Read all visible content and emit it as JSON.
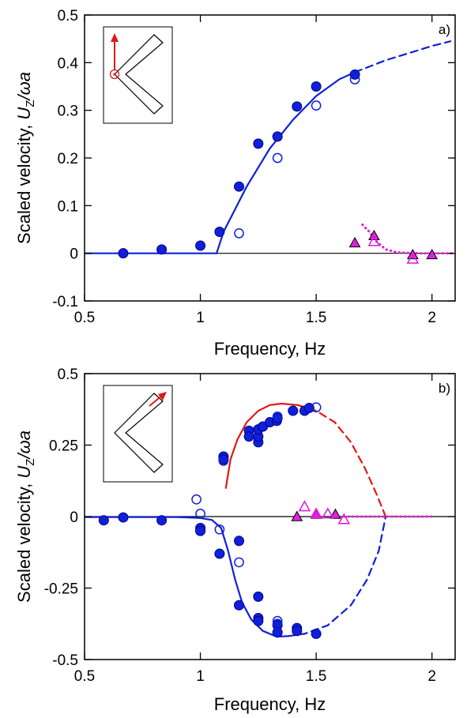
{
  "colors": {
    "blue": "#1020d8",
    "red": "#e01818",
    "magenta": "#e020e0",
    "axis": "#000000"
  },
  "chart_data": [
    {
      "type": "scatter",
      "panel_label": "a)",
      "xlabel": "Frequency, Hz",
      "ylabel_main": "Scaled velocity, ",
      "ylabel_math": "U",
      "ylabel_sub": "Z",
      "ylabel_rest": "/ωa",
      "xlim": [
        0.5,
        2.1
      ],
      "ylim": [
        -0.1,
        0.5
      ],
      "xticks": [
        0.5,
        1,
        1.5,
        2
      ],
      "xtick_labels": [
        "0.5",
        "1",
        "1.5",
        "2"
      ],
      "yticks": [
        -0.1,
        0,
        0.1,
        0.2,
        0.3,
        0.4,
        0.5
      ],
      "ytick_labels": [
        "-0.1",
        "0",
        "0.1",
        "0.2",
        "0.3",
        "0.4",
        "0.5"
      ],
      "zero_line": true,
      "series": [
        {
          "marker": "filled-circle",
          "color": "blue",
          "points": [
            [
              0.667,
              0.0
            ],
            [
              0.833,
              0.008
            ],
            [
              1.0,
              0.016
            ],
            [
              1.083,
              0.045
            ],
            [
              1.167,
              0.14
            ],
            [
              1.25,
              0.23
            ],
            [
              1.333,
              0.245
            ],
            [
              1.417,
              0.308
            ],
            [
              1.5,
              0.35
            ],
            [
              1.667,
              0.375
            ]
          ]
        },
        {
          "marker": "open-circle",
          "color": "blue",
          "points": [
            [
              1.167,
              0.042
            ],
            [
              1.333,
              0.2
            ],
            [
              1.5,
              0.31
            ],
            [
              1.667,
              0.365
            ]
          ]
        },
        {
          "marker": "filled-triangle",
          "color": "magenta",
          "points": [
            [
              1.667,
              0.022
            ],
            [
              1.75,
              0.037
            ],
            [
              1.917,
              -0.003
            ],
            [
              2.0,
              -0.003
            ]
          ]
        },
        {
          "marker": "open-triangle",
          "color": "magenta",
          "points": [
            [
              1.75,
              0.025
            ],
            [
              1.917,
              -0.012
            ]
          ]
        }
      ],
      "curves": [
        {
          "style": "solid",
          "color": "blue",
          "points": [
            [
              0.5,
              0
            ],
            [
              1.07,
              0
            ],
            [
              1.1,
              0.045
            ],
            [
              1.2,
              0.14
            ],
            [
              1.3,
              0.22
            ],
            [
              1.4,
              0.28
            ],
            [
              1.5,
              0.33
            ],
            [
              1.6,
              0.365
            ],
            [
              1.667,
              0.38
            ]
          ]
        },
        {
          "style": "dashed",
          "color": "blue",
          "points": [
            [
              1.667,
              0.38
            ],
            [
              1.8,
              0.405
            ],
            [
              1.9,
              0.42
            ],
            [
              2.0,
              0.435
            ],
            [
              2.08,
              0.445
            ]
          ]
        },
        {
          "style": "dotted",
          "color": "magenta",
          "points": [
            [
              1.7,
              0.06
            ],
            [
              1.73,
              0.045
            ],
            [
              1.76,
              0.025
            ],
            [
              1.8,
              0.008
            ],
            [
              1.85,
              0.002
            ],
            [
              1.95,
              0.0
            ],
            [
              2.1,
              0.0
            ]
          ]
        }
      ],
      "inset": {
        "arrow": "vertical-from-vertex"
      }
    },
    {
      "type": "scatter",
      "panel_label": "b)",
      "xlabel": "Frequency, Hz",
      "ylabel_main": "Scaled velocity, ",
      "ylabel_math": "U",
      "ylabel_sub": "Z",
      "ylabel_rest": "/ωa",
      "xlim": [
        0.5,
        2.1
      ],
      "ylim": [
        -0.5,
        0.5
      ],
      "xticks": [
        0.5,
        1,
        1.5,
        2
      ],
      "xtick_labels": [
        "0.5",
        "1",
        "1.5",
        "2"
      ],
      "yticks": [
        -0.5,
        -0.25,
        0,
        0.25,
        0.5
      ],
      "ytick_labels": [
        "-0.5",
        "-0.25",
        "0",
        "0.25",
        "0.5"
      ],
      "zero_line": true,
      "series": [
        {
          "marker": "filled-circle",
          "color": "blue",
          "points": [
            [
              0.583,
              -0.013
            ],
            [
              0.667,
              -0.003
            ],
            [
              0.833,
              -0.013
            ],
            [
              1.0,
              -0.04
            ],
            [
              1.0,
              -0.05
            ],
            [
              1.083,
              -0.13
            ],
            [
              1.167,
              -0.085
            ],
            [
              1.167,
              -0.31
            ],
            [
              1.25,
              -0.28
            ],
            [
              1.25,
              -0.355
            ],
            [
              1.25,
              -0.365
            ],
            [
              1.333,
              -0.38
            ],
            [
              1.333,
              -0.405
            ],
            [
              1.417,
              -0.39
            ],
            [
              1.417,
              -0.4
            ],
            [
              1.5,
              -0.41
            ],
            [
              1.1,
              0.21
            ],
            [
              1.1,
              0.2
            ],
            [
              1.21,
              0.3
            ],
            [
              1.21,
              0.28
            ],
            [
              1.25,
              0.26
            ],
            [
              1.25,
              0.28
            ],
            [
              1.25,
              0.305
            ],
            [
              1.27,
              0.315
            ],
            [
              1.3,
              0.33
            ],
            [
              1.33,
              0.335
            ],
            [
              1.333,
              0.345
            ],
            [
              1.4,
              0.37
            ],
            [
              1.45,
              0.37
            ],
            [
              1.47,
              0.38
            ]
          ]
        },
        {
          "marker": "open-circle",
          "color": "blue",
          "points": [
            [
              0.983,
              0.06
            ],
            [
              1.0,
              0.01
            ],
            [
              1.083,
              -0.045
            ],
            [
              1.167,
              -0.16
            ],
            [
              1.333,
              -0.365
            ],
            [
              1.333,
              -0.375
            ],
            [
              1.1,
              0.195
            ],
            [
              1.333,
              0.35
            ],
            [
              1.5,
              0.382
            ]
          ]
        },
        {
          "marker": "filled-triangle",
          "color": "magenta",
          "points": [
            [
              1.417,
              0.0
            ],
            [
              1.5,
              0.008
            ],
            [
              1.583,
              0.008
            ]
          ]
        },
        {
          "marker": "open-triangle",
          "color": "magenta",
          "points": [
            [
              1.45,
              0.035
            ],
            [
              1.5,
              0.01
            ],
            [
              1.55,
              0.01
            ],
            [
              1.62,
              -0.01
            ]
          ]
        }
      ],
      "curves": [
        {
          "style": "solid",
          "color": "blue",
          "points": [
            [
              0.5,
              -0.002
            ],
            [
              0.9,
              -0.002
            ],
            [
              1.0,
              -0.005
            ],
            [
              1.05,
              -0.012
            ],
            [
              1.09,
              -0.04
            ],
            [
              1.12,
              -0.12
            ],
            [
              1.15,
              -0.22
            ],
            [
              1.18,
              -0.3
            ],
            [
              1.22,
              -0.36
            ],
            [
              1.27,
              -0.4
            ],
            [
              1.33,
              -0.42
            ],
            [
              1.38,
              -0.418
            ]
          ]
        },
        {
          "style": "dashed",
          "color": "blue",
          "points": [
            [
              1.38,
              -0.418
            ],
            [
              1.45,
              -0.41
            ],
            [
              1.55,
              -0.38
            ],
            [
              1.65,
              -0.31
            ],
            [
              1.72,
              -0.22
            ],
            [
              1.77,
              -0.12
            ],
            [
              1.8,
              0.0
            ]
          ]
        },
        {
          "style": "solid",
          "color": "red",
          "points": [
            [
              1.11,
              0.1
            ],
            [
              1.13,
              0.2
            ],
            [
              1.16,
              0.27
            ],
            [
              1.2,
              0.33
            ],
            [
              1.25,
              0.37
            ],
            [
              1.3,
              0.39
            ],
            [
              1.35,
              0.395
            ],
            [
              1.42,
              0.39
            ]
          ]
        },
        {
          "style": "dashed",
          "color": "red",
          "points": [
            [
              1.42,
              0.39
            ],
            [
              1.5,
              0.37
            ],
            [
              1.58,
              0.33
            ],
            [
              1.65,
              0.26
            ],
            [
              1.71,
              0.17
            ],
            [
              1.76,
              0.08
            ],
            [
              1.8,
              0.0
            ]
          ]
        },
        {
          "style": "dotted",
          "color": "magenta",
          "points": [
            [
              1.62,
              0.0
            ],
            [
              2.0,
              0.0
            ]
          ]
        }
      ],
      "inset": {
        "arrow": "diagonal-from-arm-end"
      }
    }
  ]
}
